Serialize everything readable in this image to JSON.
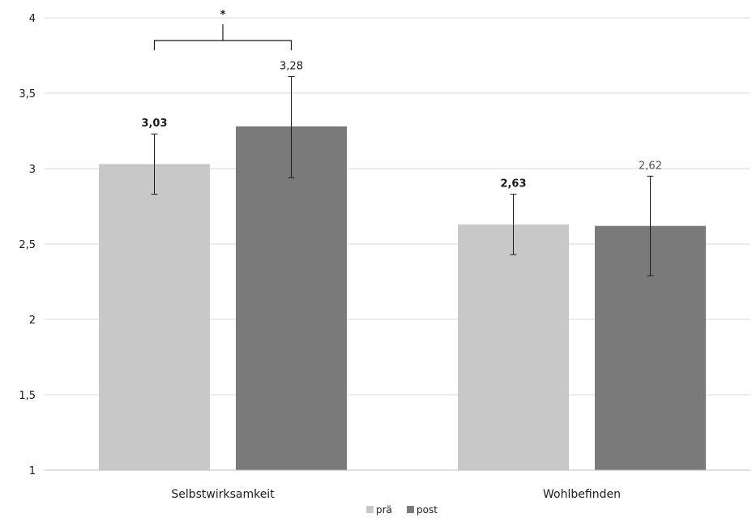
{
  "chart_data": {
    "type": "bar",
    "categories": [
      "Selbstwirksamkeit",
      "Wohlbefinden"
    ],
    "series": [
      {
        "name": "prä",
        "color": "#c8c8c8",
        "values": [
          3.03,
          2.63
        ],
        "labels": [
          "3,03",
          "2,63"
        ],
        "error_low": [
          2.83,
          2.43
        ],
        "error_high": [
          3.23,
          2.83
        ]
      },
      {
        "name": "post",
        "color": "#7a7a7a",
        "values": [
          3.28,
          2.62
        ],
        "labels": [
          "3,28",
          "2,62"
        ],
        "error_low": [
          2.94,
          2.29
        ],
        "error_high": [
          3.61,
          2.95
        ]
      }
    ],
    "ylim": [
      1,
      4
    ],
    "y_ticks": [
      1,
      1.5,
      2,
      2.5,
      3,
      3.5,
      4
    ],
    "y_tick_labels": [
      "1",
      "1,5",
      "2",
      "2,5",
      "3",
      "3,5",
      "4"
    ],
    "grid": true,
    "legend_position": "bottom",
    "significance": {
      "label": "*",
      "category": "Selbstwirksamkeit",
      "between": [
        "prä",
        "post"
      ]
    }
  }
}
